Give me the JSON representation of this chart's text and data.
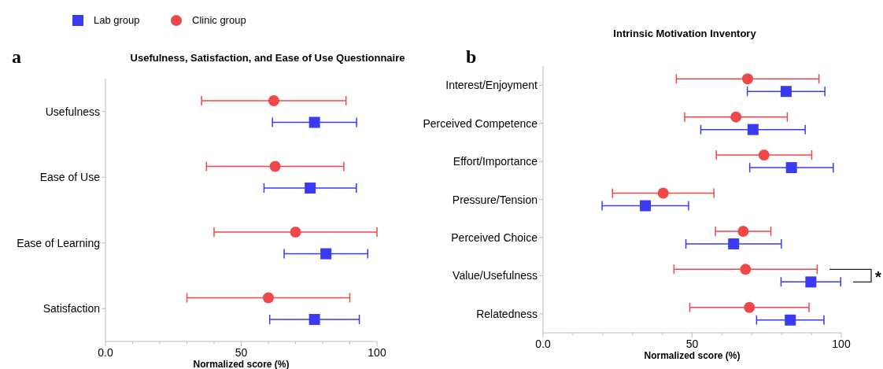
{
  "chart_data": [
    {
      "type": "scatter",
      "orientation": "horizontal",
      "title": "Usefulness, Satisfaction, and Ease of Use Questionnaire",
      "xlabel": "Normalized score (%)",
      "annotations": [
        "a"
      ],
      "legend": "top left",
      "categories": [
        "Usefulness",
        "Ease of Use",
        "Ease of Learning",
        "Satisfaction"
      ],
      "xlim": [
        0,
        100
      ],
      "xticks": [
        {
          "value": 0,
          "label": "0.0"
        },
        {
          "value": 10,
          "label": null
        },
        {
          "value": 20,
          "label": null
        },
        {
          "value": 30,
          "label": null
        },
        {
          "value": 40,
          "label": null
        },
        {
          "value": 50,
          "label": "50"
        },
        {
          "value": 60,
          "label": null
        },
        {
          "value": 70,
          "label": null
        },
        {
          "value": 80,
          "label": null
        },
        {
          "value": 90,
          "label": null
        },
        {
          "value": 100,
          "label": "100"
        }
      ],
      "series": [
        {
          "name": "Lab group",
          "color": "#3b3bf5",
          "marker": "square",
          "values": [
            77,
            75.4,
            81.2,
            77
          ],
          "errors": [
            15.5,
            17,
            15.4,
            16.5
          ]
        },
        {
          "name": "Clinic group",
          "color": "#f04848",
          "marker": "circle",
          "values": [
            62,
            62.5,
            70,
            60
          ],
          "errors": [
            26.6,
            25.3,
            30,
            30
          ]
        }
      ]
    },
    {
      "type": "scatter",
      "orientation": "horizontal",
      "title": "Intrinsic Motivation Inventory",
      "xlabel": "Normalized score (%)",
      "annotations": [
        "b",
        "*"
      ],
      "categories": [
        "Interest/Enjoyment",
        "Perceived Competence",
        "Effort/Importance",
        "Pressure/Tension",
        "Perceived Choice",
        "Value/Usefulness",
        "Relatedness"
      ],
      "xlim": [
        0,
        100
      ],
      "xticks": [
        {
          "value": 0,
          "label": "0.0"
        },
        {
          "value": 10,
          "label": null
        },
        {
          "value": 20,
          "label": null
        },
        {
          "value": 30,
          "label": null
        },
        {
          "value": 40,
          "label": null
        },
        {
          "value": 50,
          "label": "50"
        },
        {
          "value": 60,
          "label": null
        },
        {
          "value": 70,
          "label": null
        },
        {
          "value": 80,
          "label": null
        },
        {
          "value": 90,
          "label": null
        },
        {
          "value": 100,
          "label": "100"
        }
      ],
      "series": [
        {
          "color": "#3b3bf5",
          "marker": "square",
          "values": [
            81.5,
            70.4,
            83.3,
            34.3,
            63.9,
            89.8,
            82.9
          ],
          "errors": [
            13,
            17.5,
            14,
            14.5,
            16,
            10,
            11.3
          ]
        },
        {
          "color": "#f04848",
          "marker": "circle",
          "values": [
            68.6,
            64.7,
            74.1,
            40.3,
            67.1,
            67.9,
            69.2
          ],
          "errors": [
            23.9,
            17.2,
            16,
            17,
            9.3,
            24,
            20
          ]
        }
      ]
    }
  ]
}
